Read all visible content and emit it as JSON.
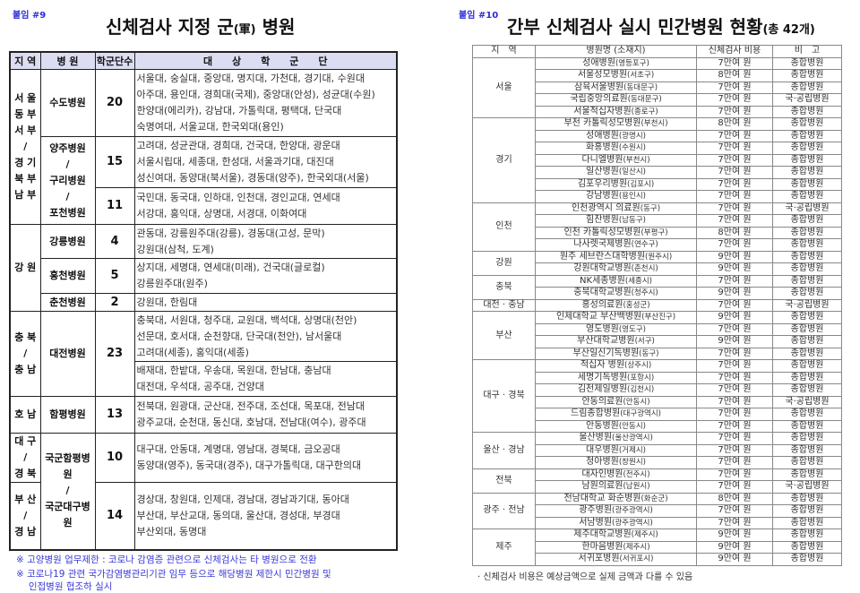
{
  "left": {
    "tag": "붙임 #9",
    "title": "신체검사 지정 군",
    "title_hanja": "(軍)",
    "title_tail": " 병원",
    "headers": [
      "지 역",
      "병 원",
      "학군단수",
      "대　　상　　학　　군　　단"
    ],
    "rows": [
      {
        "region": "서 울\n동 부\n서 부\n/\n경 기\n북 부\n남 부",
        "region_span": 3,
        "hospital": "수도병원",
        "hospital_span": 1,
        "count": "20",
        "count_span": 1,
        "schools": "서울대, 숭실대, 중앙대, 명지대, 가천대, 경기대, 수원대\n아주대, 용인대, 경희대(국제), 중앙대(안성), 성균대(수원)\n한양대(에리카), 강남대, 가톨릭대, 평택대, 단국대\n숙명여대, 서울교대, 한국외대(용인)",
        "h": 75
      },
      {
        "hospital": "양주병원\n/\n구리병원\n/\n포천병원",
        "hospital_span": 2,
        "count": "15",
        "count_span": 1,
        "schools": "고려대, 성균관대, 경희대, 건국대, 한양대, 광운대\n서울시립대, 세종대, 한성대, 서울과기대, 대진대\n성신여대, 동양대(북서울), 경동대(양주), 한국외대(서울)",
        "h": 57
      },
      {
        "count": "11",
        "count_span": 1,
        "schools": "국민대, 동국대, 인하대, 인천대, 경인교대, 연세대\n서강대, 홍익대, 상명대, 서경대, 이화여대",
        "h": 41
      },
      {
        "region": "강 원",
        "region_span": 3,
        "hospital": "강릉병원",
        "hospital_span": 1,
        "count": "4",
        "count_span": 1,
        "schools": "관동대, 강릉원주대(강릉), 경동대(고성, 문막)\n강원대(삼척, 도계)",
        "h": 38
      },
      {
        "hospital": "홍천병원",
        "hospital_span": 1,
        "count": "5",
        "count_span": 1,
        "schools": "상지대, 세명대, 연세대(미래), 건국대(글로컬)\n강릉원주대(원주)",
        "h": 39
      },
      {
        "hospital": "춘천병원",
        "hospital_span": 1,
        "count": "2",
        "count_span": 1,
        "schools": "강원대, 한림대",
        "h": 20
      },
      {
        "region": "충 북\n/\n충 남",
        "region_span": 2,
        "hospital": "대전병원",
        "hospital_span": 2,
        "count": "23",
        "count_span": 2,
        "schools": "충북대, 서원대, 청주대, 교원대,  백석대, 상명대(천안)\n선문대, 호서대, 순천향대, 단국대(천안), 남서울대\n고려대(세종), 홍익대(세종)",
        "h": 56
      },
      {
        "schools": "배재대, 한밭대, 우송대, 목원대, 한남대, 충남대\n대전대, 우석대,  공주대, 건양대",
        "h": 39
      },
      {
        "region": "호 남",
        "region_span": 1,
        "hospital": "함평병원",
        "hospital_span": 1,
        "count": "13",
        "count_span": 1,
        "schools": "전북대, 원광대, 군산대, 전주대, 조선대, 목포대, 전남대\n광주교대, 순천대, 동신대, 호남대, 전남대(여수), 광주대",
        "h": 41
      },
      {
        "region": "대 구\n/\n경 북",
        "region_span": 1,
        "hospital": "국군함평병원\n/\n국군대구병원",
        "hospital_span": 2,
        "count": "10",
        "count_span": 1,
        "schools": "대구대, 안동대, 계명대, 영남대, 경북대, 금오공대\n동양대(영주), 동국대(경주), 대구가톨릭대, 대구한의대",
        "h": 49
      },
      {
        "region": "부 산\n/\n경 남",
        "region_span": 1,
        "count": "14",
        "count_span": 1,
        "schools": "경상대, 창원대, 인제대, 경남대, 경남과기대, 동아대\n부산대, 부산교대, 동의대, 울산대, 경성대, 부경대\n부산외대, 동명대",
        "h": 75
      }
    ],
    "notes": [
      "※ 고양병원 업무제한 : 코로나 감염증 관련으로 신체검사는 타 병원으로 전환",
      "※ 코로나19 관련 국가감염병관리기관 임무 등으로 해당병원 제한시 민간병원 및\n　 인접병원 협조하 실시"
    ]
  },
  "right": {
    "tag": "붙임 #10",
    "title": "간부 신체검사 실시 민간병원 현황",
    "title_suffix": "(총 42개)",
    "headers": [
      "지　역",
      "병원명 (소재지)",
      "신체검사 비용",
      "비　고"
    ],
    "groups": [
      {
        "region": "서울",
        "rows": [
          [
            "성애병원",
            "(영등포구)",
            "7만여 원",
            "종합병원"
          ],
          [
            "서울성모병원",
            "(서초구)",
            "8만여 원",
            "종합병원"
          ],
          [
            "삼육서울병원",
            "(동대문구)",
            "7만여 원",
            "종합병원"
          ],
          [
            "국립중앙의료원",
            "(동대문구)",
            "7만여 원",
            "국·공립병원"
          ],
          [
            "서울적십자병원",
            "(종로구)",
            "7만여 원",
            "종합병원"
          ]
        ]
      },
      {
        "region": "경기",
        "rows": [
          [
            "부천 카톨릭성모병원",
            "(부천시)",
            "8만여 원",
            "종합병원"
          ],
          [
            "성애병원",
            "(광명시)",
            "7만여 원",
            "종합병원"
          ],
          [
            "화홍병원",
            "(수원시)",
            "7만여 원",
            "종합병원"
          ],
          [
            "다니엘병원",
            "(부천시)",
            "7만여 원",
            "종합병원"
          ],
          [
            "일산병원",
            "(일산시)",
            "7만여 원",
            "종합병원"
          ],
          [
            "김포우리병원",
            "(김포시)",
            "7만여 원",
            "종합병원"
          ],
          [
            "강남병원",
            "(용인시)",
            "7만여 원",
            "종합병원"
          ]
        ]
      },
      {
        "region": "인천",
        "rows": [
          [
            "인천광역시 의료원",
            "(동구)",
            "7만여 원",
            "국·공립병원"
          ],
          [
            "힘찬병원",
            "(남동구)",
            "7만여 원",
            "종합병원"
          ],
          [
            "인천 카톨릭성모병원",
            "(부평구)",
            "8만여 원",
            "종합병원"
          ],
          [
            "나사렛국제병원",
            "(연수구)",
            "7만여 원",
            "종합병원"
          ]
        ]
      },
      {
        "region": "강원",
        "rows": [
          [
            "원주 세브란스대학병원",
            "(원주시)",
            "9만여 원",
            "종합병원"
          ],
          [
            "강원대학교병원",
            "(춘천시)",
            "9만여 원",
            "종합병원"
          ]
        ]
      },
      {
        "region": "충북",
        "rows": [
          [
            "NK세종병원",
            "(세종시)",
            "7만여 원",
            "종합병원"
          ],
          [
            "충북대학교병원",
            "(청주시)",
            "9만여 원",
            "종합병원"
          ]
        ]
      },
      {
        "region": "대전 · 충남",
        "rows": [
          [
            "홍성의료원",
            "(홍성군)",
            "7만여 원",
            "국·공립병원"
          ]
        ]
      },
      {
        "region": "부산",
        "rows": [
          [
            "인제대학교 부산백병원",
            "(부산진구)",
            "9만여 원",
            "종합병원"
          ],
          [
            "영도병원",
            "(영도구)",
            "7만여 원",
            "종합병원"
          ],
          [
            "부산대학교병원",
            "(서구)",
            "9만여 원",
            "종합병원"
          ],
          [
            "부산일신기독병원",
            "(동구)",
            "7만여 원",
            "종합병원"
          ]
        ]
      },
      {
        "region": "대구 · 경북",
        "rows": [
          [
            "적십자 병원",
            "(상주시)",
            "7만여 원",
            "종합병원"
          ],
          [
            "세명기독병원",
            "(포항시)",
            "7만여 원",
            "종합병원"
          ],
          [
            "김천제일병원",
            "(김천시)",
            "7만여 원",
            "종합병원"
          ],
          [
            "안동의료원",
            "(안동시)",
            "7만여 원",
            "국·공립병원"
          ],
          [
            "드림종합병원",
            "(대구광역시)",
            "7만여 원",
            "종합병원"
          ],
          [
            "안동병원",
            "(안동시)",
            "7만여 원",
            "종합병원"
          ]
        ]
      },
      {
        "region": "울산 · 경남",
        "rows": [
          [
            "울산병원",
            "(울산광역시)",
            "7만여 원",
            "종합병원"
          ],
          [
            "대우병원",
            "(거제시)",
            "7만여 원",
            "종합병원"
          ],
          [
            "청아병원",
            "(창원시)",
            "7만여 원",
            "종합병원"
          ]
        ]
      },
      {
        "region": "전북",
        "rows": [
          [
            "대자인병원",
            "(전주시)",
            "7만여 원",
            "종합병원"
          ],
          [
            "남원의료원",
            "(남원시)",
            "7만여 원",
            "국·공립병원"
          ]
        ]
      },
      {
        "region": "광주 · 전남",
        "rows": [
          [
            "전남대학교 화순병원",
            "(화순군)",
            "8만여 원",
            "종합병원"
          ],
          [
            "광주병원",
            "(광주광역시)",
            "7만여 원",
            "종합병원"
          ],
          [
            "서남병원",
            "(광주광역시)",
            "7만여 원",
            "종합병원"
          ]
        ]
      },
      {
        "region": "제주",
        "rows": [
          [
            "제주대학교병원",
            "(제주시)",
            "9만여 원",
            "종합병원"
          ],
          [
            "한마음병원",
            "(제주시)",
            "9만여 원",
            "종합병원"
          ],
          [
            "서귀포병원",
            "(서귀포시)",
            "9만여 원",
            "종합병원"
          ]
        ]
      }
    ],
    "note": "· 신체검사 비용은 예상금액으로 실제 금액과 다를 수 있음"
  }
}
